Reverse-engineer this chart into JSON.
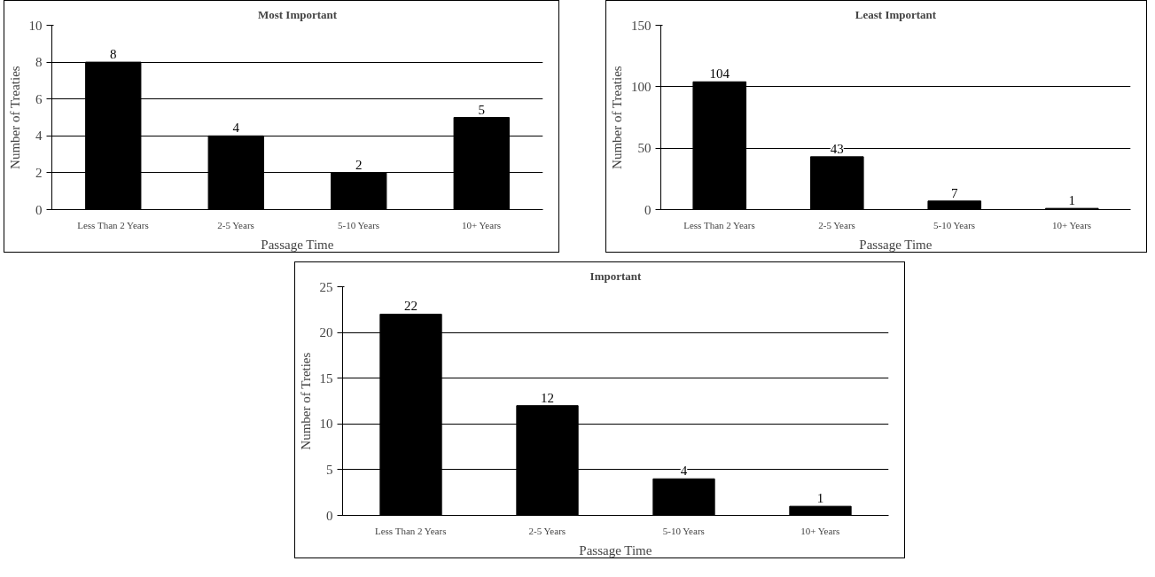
{
  "chart_data": [
    {
      "type": "bar",
      "title": "Most Important",
      "xlabel": "Passage Time",
      "ylabel": "Number of Treaties",
      "categories": [
        "Less Than 2 Years",
        "2-5 Years",
        "5-10 Years",
        "10+ Years"
      ],
      "values": [
        8,
        4,
        2,
        5
      ],
      "color": "#000000",
      "ylim": [
        0,
        10
      ],
      "yticks": [
        0,
        2,
        4,
        6,
        8,
        10
      ],
      "grid": "y",
      "data_labels": true
    },
    {
      "type": "bar",
      "title": "Least Important",
      "xlabel": "Passage Time",
      "ylabel": "Number of Treaties",
      "categories": [
        "Less Than 2 Years",
        "2-5 Years",
        "5-10 Years",
        "10+ Years"
      ],
      "values": [
        104,
        43,
        7,
        1
      ],
      "color": "#000000",
      "ylim": [
        0,
        150
      ],
      "yticks": [
        0,
        50,
        100,
        150
      ],
      "grid": "y",
      "data_labels": true
    },
    {
      "type": "bar",
      "title": "Important",
      "xlabel": "Passage Time",
      "ylabel": "Number of Treties",
      "categories": [
        "Less Than 2 Years",
        "2-5 Years",
        "5-10 Years",
        "10+ Years"
      ],
      "values": [
        22,
        12,
        4,
        1
      ],
      "color": "#000000",
      "ylim": [
        0,
        25
      ],
      "yticks": [
        0,
        5,
        10,
        15,
        20,
        25
      ],
      "grid": "y",
      "data_labels": true
    }
  ]
}
